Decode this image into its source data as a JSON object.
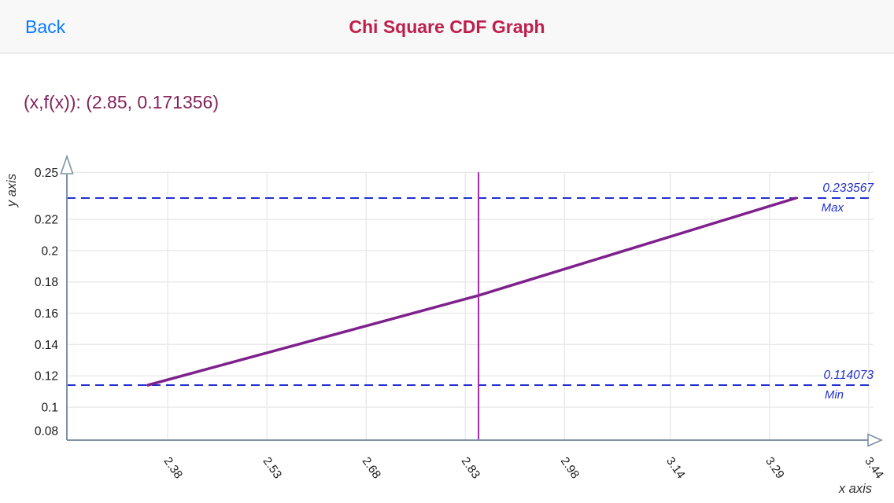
{
  "header": {
    "back_label": "Back",
    "title": "Chi Square CDF Graph"
  },
  "readout": {
    "text": "(x,f(x)): (2.85, 0.171356)"
  },
  "chart_data": {
    "type": "line",
    "title": "Chi Square CDF",
    "xlabel": "x axis",
    "ylabel": "y axis",
    "x_tick_labels": [
      "2.38",
      "2.53",
      "2.68",
      "2.83",
      "2.98",
      "3.14",
      "3.29",
      "3.44"
    ],
    "x_tick_values": [
      2.38,
      2.53,
      2.68,
      2.83,
      2.98,
      3.14,
      3.29,
      3.44
    ],
    "y_tick_labels": [
      "0.25",
      "0.22",
      "0.2",
      "0.18",
      "0.16",
      "0.14",
      "0.12",
      "0.1",
      "0.08"
    ],
    "y_tick_values": [
      0.25,
      0.22,
      0.2,
      0.18,
      0.16,
      0.14,
      0.12,
      0.1,
      0.08
    ],
    "grid": true,
    "series": [
      {
        "name": "chi-square-cdf",
        "points": [
          [
            2.35,
            0.114073
          ],
          [
            2.85,
            0.171356
          ],
          [
            3.33,
            0.233567
          ]
        ]
      }
    ],
    "cursor": {
      "x": 2.85,
      "y": 0.171356
    },
    "annotations": {
      "max": {
        "value": 0.233567,
        "value_label": "0.233567",
        "name_label": "Max"
      },
      "min": {
        "value": 0.114073,
        "value_label": "0.114073",
        "name_label": "Min"
      }
    },
    "colors": {
      "line": "#7E218C",
      "cursor_line": "#A227AE",
      "annotation_blue": "#2230D0",
      "axis": "#7E93A3",
      "grid": "#E9E9E9",
      "tick_text": "#1a1a1a",
      "title": "#BF1E4B",
      "back_link": "#0A7AFF",
      "readout_text": "#84235C"
    }
  }
}
